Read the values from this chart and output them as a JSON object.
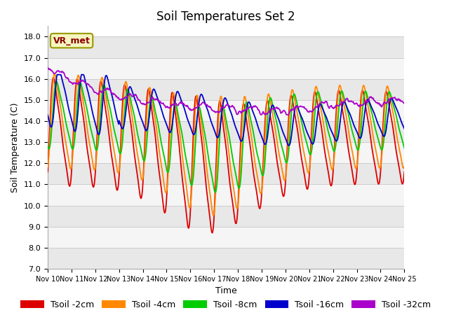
{
  "title": "Soil Temperatures Set 2",
  "xlabel": "Time",
  "ylabel": "Soil Temperature (C)",
  "ylim": [
    7.0,
    18.5
  ],
  "yticks": [
    7.0,
    8.0,
    9.0,
    10.0,
    11.0,
    12.0,
    13.0,
    14.0,
    15.0,
    16.0,
    17.0,
    18.0
  ],
  "xlim_start": 10,
  "xlim_end": 25,
  "xtick_labels": [
    "Nov 10",
    "Nov 11",
    "Nov 12",
    "Nov 13",
    "Nov 14",
    "Nov 15",
    "Nov 16",
    "Nov 17",
    "Nov 18",
    "Nov 19",
    "Nov 20",
    "Nov 21",
    "Nov 22",
    "Nov 23",
    "Nov 24",
    "Nov 25"
  ],
  "series_colors": [
    "#dd0000",
    "#ff8800",
    "#00cc00",
    "#0000cc",
    "#aa00cc"
  ],
  "series_labels": [
    "Tsoil -2cm",
    "Tsoil -4cm",
    "Tsoil -8cm",
    "Tsoil -16cm",
    "Tsoil -32cm"
  ],
  "legend_label": "VR_met",
  "background_color": "#ffffff",
  "band_color_odd": "#e8e8e8",
  "band_color_even": "#f5f5f5",
  "grid_color": "#cccccc",
  "title_fontsize": 12,
  "axis_fontsize": 9,
  "tick_fontsize": 8,
  "xtick_fontsize": 7,
  "legend_fontsize": 9,
  "linewidth": 1.3
}
